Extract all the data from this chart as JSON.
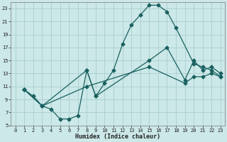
{
  "xlabel": "Humidex (Indice chaleur)",
  "bg_color": "#cce8e8",
  "grid_color": "#aacece",
  "line_color": "#1a6060",
  "xlim": [
    -0.5,
    23.5
  ],
  "ylim": [
    5,
    24
  ],
  "xticks": [
    0,
    1,
    2,
    3,
    4,
    5,
    6,
    7,
    8,
    9,
    10,
    11,
    12,
    13,
    14,
    15,
    16,
    17,
    18,
    19,
    20,
    21,
    22,
    23
  ],
  "yticks": [
    5,
    7,
    9,
    11,
    13,
    15,
    17,
    19,
    21,
    23
  ],
  "series1_x": [
    1,
    2,
    3,
    4,
    5,
    6,
    7,
    8,
    9,
    10,
    11,
    12,
    13,
    14,
    15,
    16,
    17,
    18,
    20,
    21,
    22,
    23
  ],
  "series1_y": [
    10.5,
    9.5,
    8.0,
    7.5,
    6.0,
    6.0,
    6.5,
    13.5,
    9.5,
    11.5,
    13.5,
    17.5,
    20.5,
    22.0,
    23.5,
    23.5,
    22.5,
    20.0,
    14.5,
    14.0,
    13.5,
    12.5
  ],
  "series2_x": [
    1,
    3,
    8,
    9,
    15,
    17,
    19,
    20,
    21,
    22,
    23
  ],
  "series2_y": [
    10.5,
    8.0,
    13.5,
    9.5,
    15.0,
    17.0,
    12.0,
    15.0,
    13.5,
    14.0,
    13.0
  ],
  "series3_x": [
    1,
    3,
    8,
    15,
    19,
    20,
    21,
    22,
    23
  ],
  "series3_y": [
    10.5,
    8.0,
    11.0,
    14.0,
    11.5,
    12.5,
    12.5,
    13.0,
    12.5
  ]
}
